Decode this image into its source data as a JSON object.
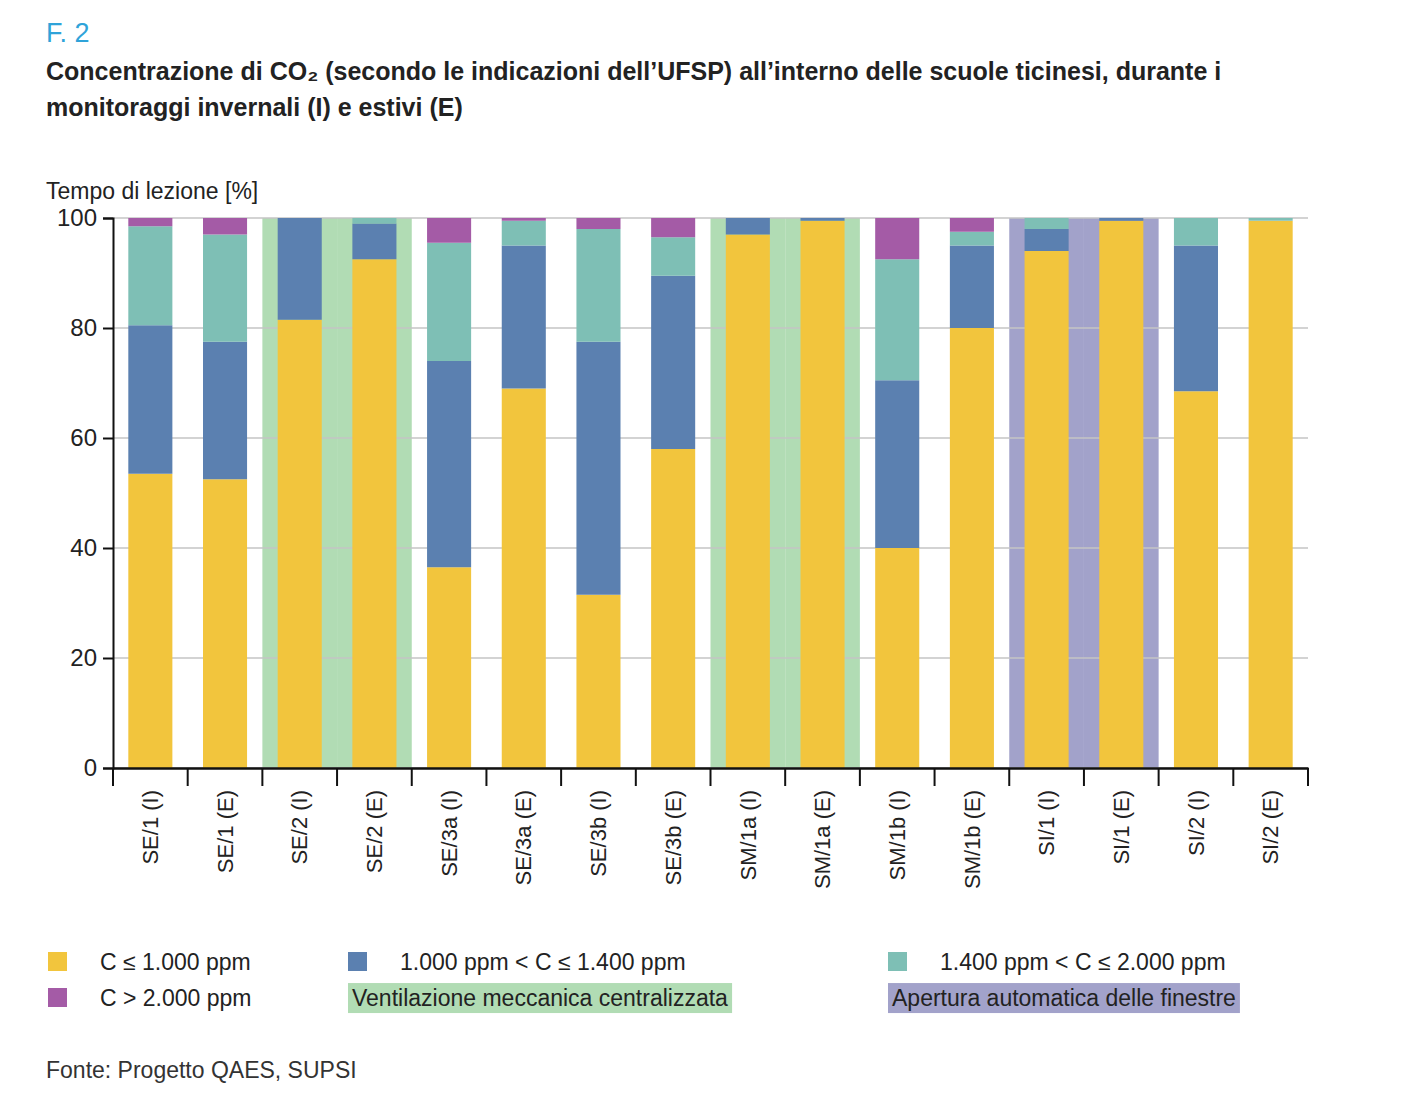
{
  "chart_data": {
    "type": "bar",
    "figure_label": "F. 2",
    "title": "Concentrazione di CO₂ (secondo le indicazioni dell’UFSP) all’interno delle scuole ticinesi, durante i monitoraggi invernali (I) e estivi (E)",
    "y_label": "Tempo di lezione [%]",
    "source": "Fonte: Progetto QAES, SUPSI",
    "categories": [
      "SE/1 (I)",
      "SE/1 (E)",
      "SE/2 (I)",
      "SE/2 (E)",
      "SE/3a (I)",
      "SE/3a (E)",
      "SE/3b (I)",
      "SE/3b (E)",
      "SM/1a (I)",
      "SM/1a (E)",
      "SM/1b (I)",
      "SM/1b (E)",
      "SI/1 (I)",
      "SI/1 (E)",
      "SI/2 (I)",
      "SI/2 (E)"
    ],
    "series": [
      {
        "name": "C ≤ 1.000 ppm",
        "color": "#f2c53d",
        "values": [
          53.5,
          52.5,
          81.5,
          92.5,
          36.5,
          69,
          31.5,
          58,
          97,
          99.5,
          40,
          80,
          94,
          99.5,
          68.5,
          99.5
        ]
      },
      {
        "name": "1.000 ppm < C ≤ 1.400 ppm",
        "color": "#5b80b0",
        "values": [
          27,
          25,
          18.5,
          6.5,
          37.5,
          26,
          46,
          31.5,
          3,
          0.5,
          30.5,
          15,
          4,
          0.5,
          26.5,
          0
        ]
      },
      {
        "name": "1.400 ppm < C ≤ 2.000 ppm",
        "color": "#7ebfb5",
        "values": [
          18,
          19.5,
          0,
          1,
          21.5,
          4.5,
          20.5,
          7,
          0,
          0,
          22,
          2.5,
          2,
          0,
          5,
          0.5
        ]
      },
      {
        "name": "C > 2.000 ppm",
        "color": "#a45ba6",
        "values": [
          1.5,
          3,
          0,
          0,
          4.5,
          0.5,
          2,
          3.5,
          0,
          0,
          7.5,
          2.5,
          0,
          0,
          0,
          0
        ]
      }
    ],
    "highlights": [
      {
        "label": "Ventilazione meccanica centralizzata",
        "color": "#b1dcb4",
        "categories": [
          "SE/2 (I)",
          "SE/2 (E)",
          "SM/1a (I)",
          "SM/1a (E)"
        ]
      },
      {
        "label": "Apertura automatica delle finestre",
        "color": "#a2a2ca",
        "categories": [
          "SI/1 (I)",
          "SI/1 (E)"
        ]
      }
    ],
    "ylim": [
      0,
      100
    ],
    "yticks": [
      0,
      20,
      40,
      60,
      80,
      100
    ],
    "stacked": true,
    "grid": true,
    "legend": "bottom"
  }
}
